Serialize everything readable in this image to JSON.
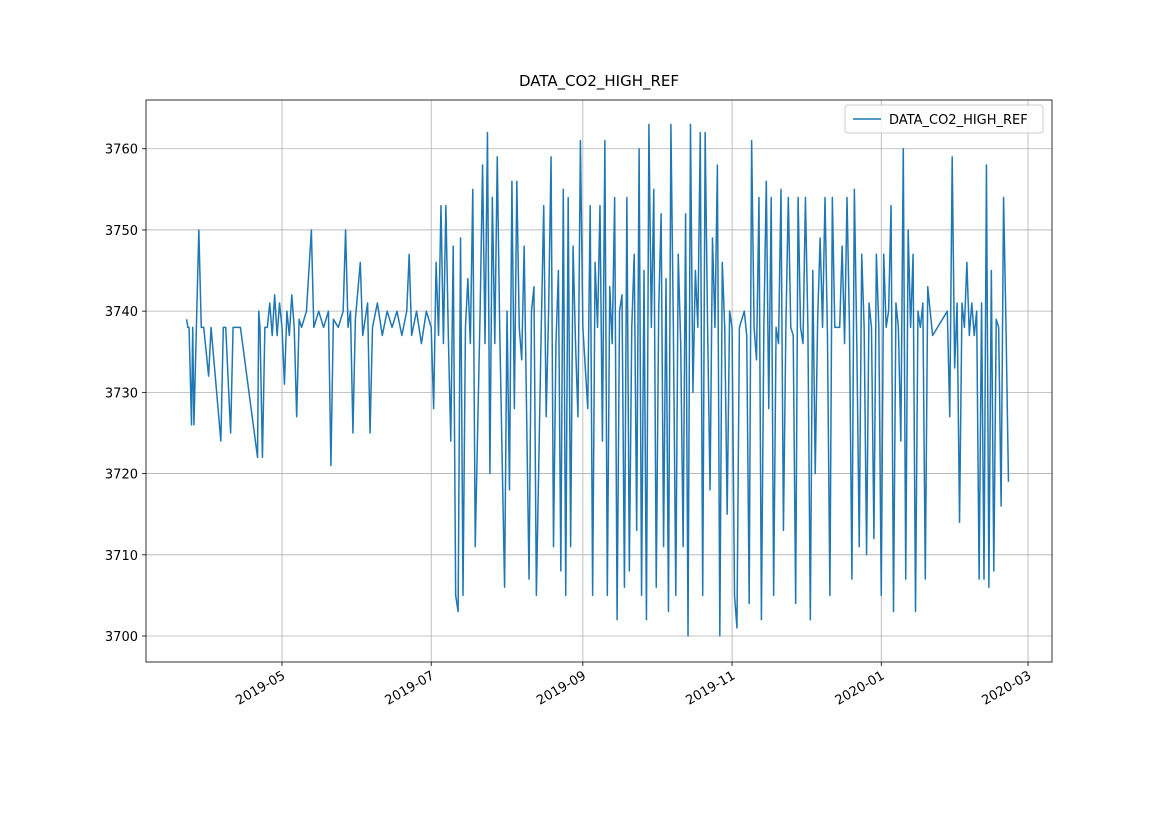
{
  "chart_data": {
    "type": "line",
    "title": "DATA_CO2_HIGH_REF",
    "x": [
      737141,
      737141.5,
      737142,
      737143,
      737143.5,
      737144,
      737145,
      737146,
      737147,
      737148,
      737150,
      737151,
      737155,
      737156,
      737157,
      737159,
      737160,
      737163,
      737170,
      737170.5,
      737171,
      737172,
      737173,
      737174,
      737175,
      737176,
      737177,
      737178,
      737179,
      737180,
      737181,
      737182,
      737183,
      737184,
      737185,
      737186,
      737187,
      737188,
      737190,
      737192,
      737193,
      737195,
      737197,
      737199,
      737200,
      737201,
      737203,
      737205,
      737206,
      737207,
      737208,
      737209,
      737210,
      737212,
      737213,
      737215,
      737216,
      737217,
      737219,
      737221,
      737223,
      737225,
      737227,
      737229,
      737231,
      737232,
      737233,
      737235,
      737237,
      737239,
      737241,
      737242,
      737243,
      737244,
      737245,
      737246,
      737247,
      737248,
      737249,
      737250,
      737251,
      737252,
      737253,
      737254,
      737255,
      737256,
      737257,
      737258,
      737259,
      737261,
      737262,
      737263,
      737264,
      737265,
      737266,
      737267,
      737268,
      737269,
      737271,
      737272,
      737273,
      737274,
      737275,
      737276,
      737277,
      737278,
      737279,
      737281,
      737282,
      737283,
      737284,
      737286,
      737287,
      737288,
      737289,
      737290,
      737291,
      737292,
      737293,
      737294,
      737295,
      737296,
      737297,
      737298,
      737299,
      737300,
      737301,
      737302,
      737303,
      737305,
      737306,
      737307,
      737308,
      737309,
      737310,
      737311,
      737312,
      737313,
      737314,
      737315,
      737316,
      737317,
      737318,
      737319,
      737320,
      737321,
      737322,
      737323,
      737324,
      737325,
      737326,
      737327,
      737328,
      737329,
      737330,
      737331,
      737332,
      737333,
      737334,
      737335,
      737336,
      737337,
      737338,
      737339,
      737340,
      737341,
      737342,
      737343,
      737344,
      737345,
      737346,
      737347,
      737348,
      737349,
      737350,
      737351,
      737352,
      737353,
      737354,
      737355,
      737356,
      737357,
      737358,
      737359,
      737360,
      737361,
      737362,
      737363,
      737364,
      737365,
      737366,
      737367,
      737369,
      737370,
      737371,
      737372,
      737373,
      737374,
      737375,
      737376,
      737377,
      737378,
      737379,
      737380,
      737381,
      737382,
      737383,
      737384,
      737385,
      737386,
      737387,
      737388,
      737389,
      737390,
      737391,
      737392,
      737393,
      737394,
      737395,
      737396,
      737397,
      737398,
      737399,
      737400,
      737401,
      737402,
      737403,
      737404,
      737405,
      737406,
      737408,
      737409,
      737410,
      737411,
      737412,
      737413,
      737414,
      737415,
      737416,
      737417,
      737418,
      737419,
      737420,
      737421,
      737422,
      737423,
      737424,
      737425,
      737426,
      737427,
      737428,
      737429,
      737430,
      737431,
      737432,
      737433,
      737434,
      737435,
      737436,
      737437,
      737438,
      737439,
      737440,
      737441,
      737442,
      737443,
      737444,
      737446,
      737452,
      737453,
      737454,
      737455,
      737456,
      737457,
      737458,
      737459,
      737460,
      737461,
      737462,
      737463,
      737464,
      737465,
      737466,
      737467,
      737468,
      737469,
      737470,
      737471,
      737472,
      737473,
      737474,
      737475,
      737476,
      737477
    ],
    "series": [
      {
        "name": "DATA_CO2_HIGH_REF",
        "color": "#1f77b4",
        "values": [
          3739,
          3738,
          3738,
          3726,
          3738,
          3726,
          3738,
          3750,
          3738,
          3738,
          3732,
          3738,
          3724,
          3738,
          3738,
          3725,
          3738,
          3738,
          3722,
          3740,
          3738,
          3722,
          3738,
          3738,
          3741,
          3737,
          3742,
          3737,
          3741,
          3738,
          3731,
          3740,
          3737,
          3742,
          3738,
          3727,
          3739,
          3738,
          3740,
          3750,
          3738,
          3740,
          3738,
          3740,
          3721,
          3739,
          3738,
          3740,
          3750,
          3738,
          3740,
          3725,
          3739,
          3746,
          3737,
          3741,
          3725,
          3738,
          3741,
          3737,
          3740,
          3738,
          3740,
          3737,
          3740,
          3747,
          3737,
          3740,
          3736,
          3740,
          3738,
          3728,
          3746,
          3737,
          3753,
          3736,
          3753,
          3737,
          3724,
          3748,
          3705,
          3703,
          3749,
          3705,
          3738,
          3744,
          3736,
          3755,
          3711,
          3740,
          3758,
          3736,
          3762,
          3720,
          3754,
          3736,
          3759,
          3738,
          3706,
          3740,
          3718,
          3756,
          3728,
          3756,
          3738,
          3734,
          3748,
          3707,
          3740,
          3743,
          3705,
          3738,
          3753,
          3727,
          3740,
          3759,
          3711,
          3736,
          3745,
          3708,
          3755,
          3705,
          3754,
          3711,
          3748,
          3736,
          3727,
          3761,
          3738,
          3728,
          3753,
          3705,
          3746,
          3738,
          3753,
          3724,
          3761,
          3705,
          3743,
          3736,
          3754,
          3702,
          3740,
          3742,
          3706,
          3754,
          3708,
          3738,
          3747,
          3713,
          3760,
          3705,
          3745,
          3702,
          3763,
          3738,
          3755,
          3706,
          3740,
          3752,
          3711,
          3744,
          3703,
          3763,
          3738,
          3705,
          3747,
          3736,
          3711,
          3752,
          3700,
          3763,
          3730,
          3745,
          3738,
          3762,
          3705,
          3762,
          3738,
          3718,
          3749,
          3738,
          3758,
          3700,
          3746,
          3738,
          3715,
          3740,
          3738,
          3705,
          3701,
          3738,
          3740,
          3737,
          3704,
          3761,
          3738,
          3734,
          3754,
          3702,
          3738,
          3756,
          3728,
          3754,
          3705,
          3738,
          3736,
          3755,
          3713,
          3738,
          3754,
          3738,
          3737,
          3704,
          3754,
          3738,
          3736,
          3754,
          3738,
          3702,
          3745,
          3720,
          3739,
          3749,
          3738,
          3754,
          3737,
          3705,
          3754,
          3738,
          3738,
          3748,
          3736,
          3754,
          3738,
          3707,
          3755,
          3736,
          3711,
          3747,
          3738,
          3710,
          3741,
          3738,
          3712,
          3747,
          3738,
          3705,
          3747,
          3738,
          3740,
          3753,
          3703,
          3741,
          3738,
          3724,
          3760,
          3707,
          3750,
          3738,
          3747,
          3703,
          3740,
          3738,
          3741,
          3707,
          3743,
          3737,
          3740,
          3727,
          3759,
          3733,
          3741,
          3714,
          3741,
          3738,
          3746,
          3737,
          3741,
          3737,
          3740,
          3707,
          3741,
          3707,
          3758,
          3706,
          3745,
          3708,
          3739,
          3738,
          3716,
          3754,
          3738,
          3719
        ]
      }
    ],
    "xlim": [
      737124.4,
      737494.8
    ],
    "xticks": [
      {
        "value": 737180,
        "label": "2019-05"
      },
      {
        "value": 737241,
        "label": "2019-07"
      },
      {
        "value": 737303,
        "label": "2019-09"
      },
      {
        "value": 737364,
        "label": "2019-11"
      },
      {
        "value": 737425,
        "label": "2020-01"
      },
      {
        "value": 737485,
        "label": "2020-03"
      }
    ],
    "ylim": [
      3696.8,
      3766.0
    ],
    "yticks": [
      3700,
      3710,
      3720,
      3730,
      3740,
      3750,
      3760
    ],
    "grid": true,
    "legend": "upper right"
  }
}
